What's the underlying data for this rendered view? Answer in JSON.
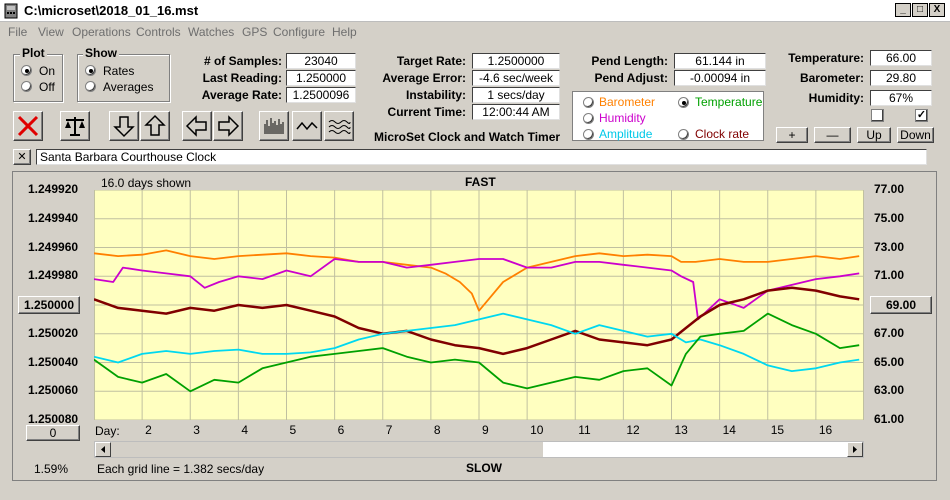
{
  "window": {
    "title": "C:\\microset\\2018_01_16.mst",
    "minimize": "_",
    "maximize": "□",
    "close": "X"
  },
  "menu": [
    "File",
    "View",
    "Operations",
    "Controls",
    "Watches",
    "GPS",
    "Configure",
    "Help"
  ],
  "plot_group": {
    "label": "Plot",
    "options": [
      "On",
      "Off"
    ],
    "selected": "On"
  },
  "show_group": {
    "label": "Show",
    "options": [
      "Rates",
      "Averages"
    ],
    "selected": "Rates"
  },
  "stats": [
    {
      "label": "# of Samples:",
      "value": "23040"
    },
    {
      "label": "Last Reading:",
      "value": "1.250000"
    },
    {
      "label": "Average Rate:",
      "value": "1.2500096"
    }
  ],
  "timing": [
    {
      "label": "Target Rate:",
      "value": "1.2500000"
    },
    {
      "label": "Average Error:",
      "value": "-4.6 sec/week"
    },
    {
      "label": "Instability:",
      "value": "1 secs/day"
    },
    {
      "label": "Current Time:",
      "value": "12:00:44 AM"
    }
  ],
  "pend": [
    {
      "label": "Pend Length:",
      "value": "61.144 in"
    },
    {
      "label": "Pend Adjust:",
      "value": "-0.00094 in"
    }
  ],
  "environment": [
    {
      "label": "Temperature:",
      "value": "66.00"
    },
    {
      "label": "Barometer:",
      "value": "29.80"
    },
    {
      "label": "Humidity:",
      "value": "67%"
    }
  ],
  "series_selector": {
    "options": [
      {
        "label": "Barometer",
        "color": "#ff8000",
        "selected": false
      },
      {
        "label": "Temperature",
        "color": "#00a000",
        "selected": true
      },
      {
        "label": "Humidity",
        "color": "#cc00cc",
        "selected": false
      },
      {
        "label": "Clock rate",
        "color": "#800000",
        "selected": false
      },
      {
        "label": "Amplitude",
        "color": "#00c8e8",
        "selected": false
      }
    ]
  },
  "checkboxes": [
    {
      "checked": false
    },
    {
      "checked": true
    }
  ],
  "app_caption": "MicroSet Clock and Watch Timer",
  "adjust_buttons": [
    "+",
    "—",
    "Up",
    "Down"
  ],
  "toolbar_icons": [
    "stop-icon",
    "balance-icon",
    "arrow-down-icon",
    "arrow-up-icon",
    "arrow-left-icon",
    "arrow-right-icon",
    "bar-graph-icon",
    "wave-icon",
    "multi-wave-icon"
  ],
  "clock_name": "Santa Barbara Courthouse Clock",
  "clear_button": "✕",
  "plot": {
    "days_shown": "16.0 days shown",
    "top_label": "FAST",
    "bottom_label": "SLOW",
    "grid_note": "Each grid line = 1.382 secs/day",
    "day_label": "Day:",
    "center_button_left": "1.250000",
    "center_button_right": "69.00",
    "zero_button": "0",
    "percent": "1.59%",
    "bg": "#ffffc0"
  },
  "chart_data": {
    "type": "line",
    "x_label": "Day",
    "x_ticks": [
      2,
      3,
      4,
      5,
      6,
      7,
      8,
      9,
      10,
      11,
      12,
      13,
      14,
      15,
      16
    ],
    "xlim": [
      1.0,
      17.0
    ],
    "y_left_ticks": [
      "1.249920",
      "1.249940",
      "1.249960",
      "1.249980",
      "1.250000",
      "1.250020",
      "1.250040",
      "1.250060",
      "1.250080"
    ],
    "ylim_left": [
      1.24992,
      1.25008
    ],
    "y_right_ticks": [
      "77.00",
      "75.00",
      "73.00",
      "71.00",
      "69.00",
      "67.00",
      "65.00",
      "63.00",
      "61.00"
    ],
    "ylim_right": [
      77.0,
      61.0
    ],
    "series": [
      {
        "color": "#ff8000",
        "axis": "left",
        "x": [
          1.0,
          1.5,
          2.0,
          2.5,
          3.0,
          3.5,
          4.0,
          4.5,
          5.0,
          5.5,
          6.0,
          6.5,
          7.0,
          7.5,
          8.0,
          8.3,
          8.6,
          8.85,
          9.0,
          9.2,
          9.5,
          10.0,
          10.5,
          11.0,
          11.5,
          12.0,
          12.5,
          13.0,
          13.2,
          13.5,
          14.0,
          14.5,
          15.0,
          15.5,
          16.0,
          16.5,
          16.9
        ],
        "y": [
          1.249964,
          1.249966,
          1.249965,
          1.249962,
          1.249966,
          1.249968,
          1.249966,
          1.249965,
          1.249964,
          1.249966,
          1.249967,
          1.24997,
          1.24997,
          1.249972,
          1.249974,
          1.249978,
          1.249984,
          1.249992,
          1.250004,
          1.249996,
          1.249984,
          1.249974,
          1.24997,
          1.249966,
          1.249964,
          1.249966,
          1.249965,
          1.249966,
          1.24997,
          1.24997,
          1.249968,
          1.24997,
          1.24997,
          1.249968,
          1.249966,
          1.249968,
          1.249966
        ]
      },
      {
        "color": "#cc00cc",
        "axis": "left",
        "x": [
          1.0,
          1.4,
          1.6,
          2.0,
          2.5,
          3.0,
          3.3,
          3.6,
          4.0,
          4.5,
          5.0,
          5.5,
          6.0,
          6.5,
          7.0,
          7.5,
          8.0,
          8.5,
          9.0,
          9.5,
          10.0,
          10.5,
          11.0,
          11.5,
          12.0,
          12.5,
          13.0,
          13.2,
          13.45,
          13.55,
          14.0,
          14.5,
          15.0,
          15.5,
          16.0,
          16.5,
          16.9
        ],
        "y": [
          1.249982,
          1.249984,
          1.249974,
          1.249976,
          1.249978,
          1.24998,
          1.249988,
          1.249984,
          1.24998,
          1.249982,
          1.249976,
          1.24998,
          1.249968,
          1.24997,
          1.24997,
          1.249974,
          1.249972,
          1.24997,
          1.249968,
          1.249968,
          1.249974,
          1.249974,
          1.24997,
          1.24997,
          1.249972,
          1.249974,
          1.249976,
          1.24998,
          1.249984,
          1.25001,
          1.249996,
          1.250002,
          1.24999,
          1.249986,
          1.249982,
          1.24998,
          1.249978
        ]
      },
      {
        "color": "#800000",
        "axis": "left",
        "x": [
          1.0,
          1.5,
          2.0,
          2.5,
          3.0,
          3.5,
          4.0,
          4.5,
          5.0,
          5.5,
          6.0,
          6.5,
          7.0,
          7.5,
          8.0,
          8.5,
          9.0,
          9.5,
          10.0,
          10.5,
          11.0,
          11.5,
          12.0,
          12.5,
          13.0,
          13.3,
          13.6,
          14.0,
          14.5,
          15.0,
          15.5,
          16.0,
          16.5,
          16.9
        ],
        "y": [
          1.249996,
          1.250002,
          1.250004,
          1.250006,
          1.250002,
          1.250004,
          1.25,
          1.250002,
          1.25,
          1.250004,
          1.250008,
          1.250016,
          1.25002,
          1.250018,
          1.250024,
          1.250028,
          1.25003,
          1.250034,
          1.25003,
          1.250024,
          1.250018,
          1.250024,
          1.250026,
          1.250028,
          1.250024,
          1.250016,
          1.250008,
          1.25,
          1.249996,
          1.24999,
          1.249988,
          1.24999,
          1.249994,
          1.249996
        ]
      },
      {
        "color": "#00d8f0",
        "axis": "right",
        "x": [
          1.0,
          1.5,
          2.0,
          2.5,
          3.0,
          3.5,
          4.0,
          4.5,
          5.0,
          5.5,
          6.0,
          6.5,
          7.0,
          7.5,
          8.0,
          8.5,
          9.0,
          9.5,
          10.0,
          10.5,
          11.0,
          11.5,
          12.0,
          12.5,
          13.0,
          13.3,
          13.6,
          14.0,
          14.5,
          15.0,
          15.5,
          16.0,
          16.5,
          16.9
        ],
        "y": [
          65.4,
          65.0,
          65.6,
          65.8,
          65.6,
          65.8,
          65.9,
          65.6,
          65.6,
          65.7,
          66.0,
          66.6,
          67.0,
          67.2,
          67.4,
          67.6,
          68.0,
          68.4,
          68.0,
          67.6,
          67.0,
          67.6,
          67.2,
          66.8,
          67.0,
          66.4,
          66.6,
          66.2,
          65.6,
          64.8,
          64.4,
          64.6,
          65.0,
          65.2
        ]
      },
      {
        "color": "#00a000",
        "axis": "right",
        "x": [
          1.0,
          1.5,
          2.0,
          2.5,
          3.0,
          3.5,
          4.0,
          4.5,
          5.0,
          5.5,
          6.0,
          6.5,
          7.0,
          7.5,
          8.0,
          8.5,
          9.0,
          9.5,
          10.0,
          10.5,
          11.0,
          11.5,
          12.0,
          12.5,
          13.0,
          13.3,
          13.6,
          14.0,
          14.5,
          15.0,
          15.5,
          16.0,
          16.5,
          16.9
        ],
        "y": [
          65.2,
          64.0,
          63.6,
          64.2,
          63.0,
          63.8,
          63.6,
          64.6,
          65.0,
          65.4,
          65.6,
          65.8,
          66.0,
          65.4,
          65.0,
          65.2,
          65.0,
          63.6,
          63.2,
          63.6,
          64.0,
          63.8,
          64.4,
          64.6,
          63.4,
          65.6,
          66.8,
          67.0,
          67.2,
          68.4,
          67.6,
          67.0,
          66.0,
          66.2
        ]
      }
    ]
  }
}
